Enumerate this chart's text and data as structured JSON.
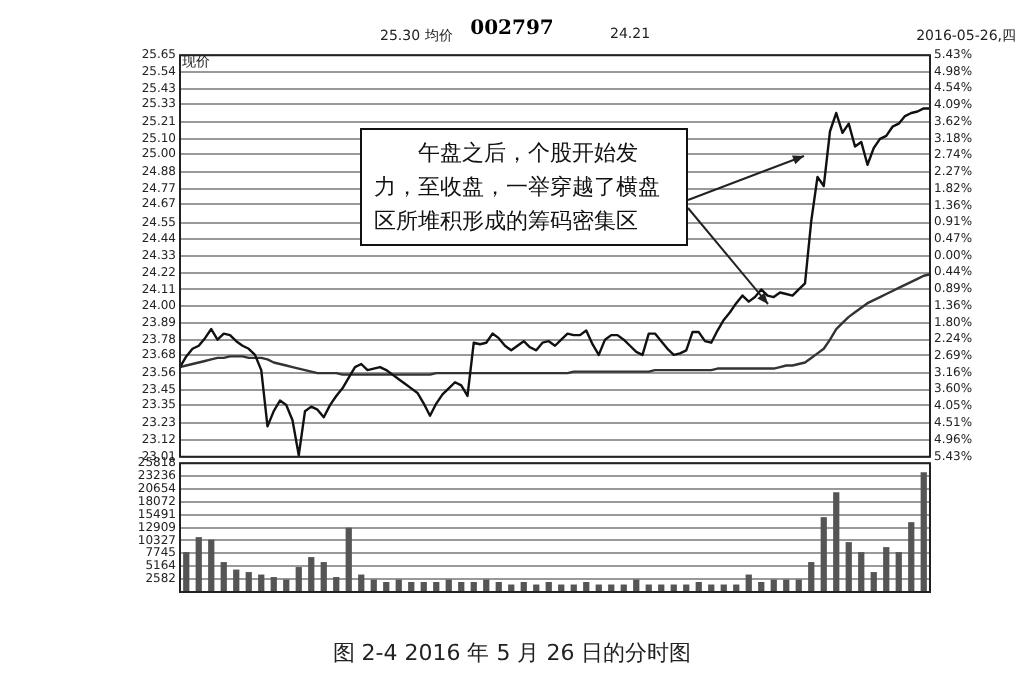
{
  "chart_data": [
    {
      "type": "line",
      "title": "002797",
      "ylabel": "现价",
      "annotations": [
        "25.30 均价",
        "24.21",
        "2016-05-26,四",
        "午盘之后，个股开始发力，至收盘，一举穿越了横盘区所堆积形成的筹码密集区"
      ],
      "categories": [
        null,
        null,
        null,
        null,
        null,
        null,
        null,
        null,
        null,
        null,
        null,
        null,
        null,
        null,
        null,
        null,
        null,
        null,
        null,
        null,
        null,
        null,
        null,
        null,
        null,
        null,
        null,
        null,
        null,
        null,
        null,
        null,
        null,
        null,
        null,
        null,
        null,
        null,
        null,
        null,
        null,
        null,
        null,
        null,
        null,
        null,
        null,
        null,
        null,
        null,
        null,
        null,
        null,
        null,
        null,
        null,
        null,
        null,
        null,
        null,
        null,
        null,
        null,
        null,
        null,
        null,
        null,
        null,
        null,
        null,
        null,
        null,
        null,
        null,
        null,
        null,
        null,
        null,
        null,
        null,
        null,
        null,
        null,
        null,
        null,
        null,
        null,
        null,
        null,
        null,
        null,
        null,
        null,
        null,
        null,
        null,
        null,
        null,
        null,
        null,
        null,
        null,
        null,
        null,
        null,
        null,
        null,
        null,
        null,
        null,
        null,
        null,
        null,
        null,
        null,
        null,
        null,
        null,
        null,
        null,
        null
      ],
      "series": [
        {
          "color": "#111111",
          "values": [
            23.6,
            23.67,
            23.72,
            23.74,
            23.79,
            23.85,
            23.78,
            23.82,
            23.81,
            23.77,
            23.74,
            23.72,
            23.68,
            23.58,
            23.21,
            23.31,
            23.38,
            23.35,
            23.25,
            23.02,
            23.31,
            23.34,
            23.32,
            23.27,
            23.35,
            23.41,
            23.46,
            23.53,
            23.6,
            23.62,
            23.58,
            23.59,
            23.6,
            23.58,
            23.55,
            23.52,
            23.49,
            23.46,
            23.43,
            23.36,
            23.28,
            23.36,
            23.42,
            23.46,
            23.5,
            23.48,
            23.41,
            23.76,
            23.75,
            23.76,
            23.82,
            23.79,
            23.74,
            23.71,
            23.74,
            23.77,
            23.73,
            23.71,
            23.76,
            23.77,
            23.74,
            23.78,
            23.82,
            23.81,
            23.81,
            23.84,
            23.75,
            23.68,
            23.78,
            23.81,
            23.81,
            23.78,
            23.74,
            23.7,
            23.68,
            23.82,
            23.82,
            23.77,
            23.72,
            23.68,
            23.69,
            23.71,
            23.83,
            23.83,
            23.77,
            23.76,
            23.84,
            23.91,
            23.96,
            24.02,
            24.07,
            24.03,
            24.06,
            24.11,
            24.07,
            24.06,
            24.09,
            24.08,
            24.07,
            24.11,
            24.15,
            24.56,
            24.85,
            24.79,
            25.15,
            25.27,
            25.14,
            25.2,
            25.05,
            25.08,
            24.93,
            25.04,
            25.1,
            25.12,
            25.18,
            25.2,
            25.25,
            25.27,
            25.28,
            25.3,
            25.3
          ]
        },
        {
          "color": "#333333",
          "values": [
            23.6,
            23.61,
            23.62,
            23.63,
            23.64,
            23.65,
            23.66,
            23.66,
            23.67,
            23.67,
            23.67,
            23.66,
            23.66,
            23.66,
            23.65,
            23.63,
            23.62,
            23.61,
            23.6,
            23.59,
            23.58,
            23.57,
            23.56,
            23.56,
            23.56,
            23.56,
            23.55,
            23.55,
            23.55,
            23.55,
            23.55,
            23.55,
            23.55,
            23.55,
            23.55,
            23.55,
            23.55,
            23.55,
            23.55,
            23.55,
            23.55,
            23.56,
            23.56,
            23.56,
            23.56,
            23.56,
            23.56,
            23.56,
            23.56,
            23.56,
            23.56,
            23.56,
            23.56,
            23.56,
            23.56,
            23.56,
            23.56,
            23.56,
            23.56,
            23.56,
            23.56,
            23.56,
            23.56,
            23.57,
            23.57,
            23.57,
            23.57,
            23.57,
            23.57,
            23.57,
            23.57,
            23.57,
            23.57,
            23.57,
            23.57,
            23.57,
            23.58,
            23.58,
            23.58,
            23.58,
            23.58,
            23.58,
            23.58,
            23.58,
            23.58,
            23.58,
            23.59,
            23.59,
            23.59,
            23.59,
            23.59,
            23.59,
            23.59,
            23.59,
            23.59,
            23.59,
            23.6,
            23.61,
            23.61,
            23.62,
            23.63,
            23.66,
            23.69,
            23.72,
            23.78,
            23.85,
            23.89,
            23.93,
            23.96,
            23.99,
            24.02,
            24.04,
            24.06,
            24.08,
            24.1,
            24.12,
            24.14,
            24.16,
            24.18,
            24.2,
            24.21
          ]
        }
      ],
      "ylim": [
        23.01,
        25.65
      ],
      "yticks": [
        23.01,
        23.12,
        23.23,
        23.35,
        23.45,
        23.56,
        23.68,
        23.78,
        23.89,
        {
          "value": 24,
          "label": "24.00"
        },
        24.11,
        24.22,
        24.33,
        24.44,
        24.55,
        24.67,
        24.77,
        24.88,
        {
          "value": 25,
          "label": "25.00"
        },
        {
          "value": 25.1,
          "label": "25.10"
        },
        25.21,
        25.33,
        25.43,
        25.54,
        25.65
      ],
      "y2lim": [
        -5.43,
        5.43
      ],
      "y2ticks": [
        {
          "value": 5.43,
          "label": "5.43%"
        },
        {
          "value": 4.98,
          "label": "4.98%"
        },
        {
          "value": 4.54,
          "label": "4.54%"
        },
        {
          "value": 4.09,
          "label": "4.09%"
        },
        {
          "value": 3.62,
          "label": "3.62%"
        },
        {
          "value": 3.18,
          "label": "3.18%"
        },
        {
          "value": 2.74,
          "label": "2.74%"
        },
        {
          "value": 2.27,
          "label": "2.27%"
        },
        {
          "value": 1.82,
          "label": "1.82%"
        },
        {
          "value": 1.36,
          "label": "1.36%"
        },
        {
          "value": 0.91,
          "label": "0.91%"
        },
        {
          "value": 0.47,
          "label": "0.47%"
        },
        {
          "value": 0,
          "label": "0.00%"
        },
        {
          "value": -0.44,
          "label": "0.44%"
        },
        {
          "value": -0.89,
          "label": "0.89%"
        },
        {
          "value": -1.36,
          "label": "1.36%"
        },
        {
          "value": -1.8,
          "label": "1.80%"
        },
        {
          "value": -2.24,
          "label": "2.24%"
        },
        {
          "value": -2.69,
          "label": "2.69%"
        },
        {
          "value": -3.16,
          "label": "3.16%"
        },
        {
          "value": -3.6,
          "label": "3.60%"
        },
        {
          "value": -4.05,
          "label": "4.05%"
        },
        {
          "value": -4.51,
          "label": "4.51%"
        },
        {
          "value": -4.96,
          "label": "4.96%"
        },
        {
          "value": -5.43,
          "label": "5.43%"
        }
      ],
      "grid": "y",
      "legend": false,
      "tick_labels": "y",
      "marker": "none"
    },
    {
      "type": "bar",
      "annotations": [
        "图 2-4 2016 年 5 月 26 日的分时图"
      ],
      "categories": [
        null,
        null,
        null,
        null,
        null,
        null,
        null,
        null,
        null,
        null,
        null,
        null,
        null,
        null,
        null,
        null,
        null,
        null,
        null,
        null,
        null,
        null,
        null,
        null,
        null,
        null,
        null,
        null,
        null,
        null,
        null,
        null,
        null,
        null,
        null,
        null,
        null,
        null,
        null,
        null,
        null,
        null,
        null,
        null,
        null,
        null,
        null,
        null,
        null,
        null,
        null,
        null,
        null,
        null,
        null,
        null,
        null,
        null,
        null,
        null
      ],
      "values": [
        8000,
        11000,
        10500,
        6000,
        4500,
        4000,
        3500,
        3000,
        2500,
        5000,
        7000,
        6000,
        3000,
        12900,
        3500,
        2500,
        2000,
        2500,
        2000,
        2000,
        2000,
        2500,
        2000,
        2000,
        2500,
        2000,
        1500,
        2000,
        1500,
        2000,
        1500,
        1500,
        2000,
        1500,
        1500,
        1500,
        2500,
        1500,
        1500,
        1500,
        1500,
        2000,
        1500,
        1500,
        1500,
        3500,
        2000,
        2500,
        2500,
        2500,
        6000,
        15000,
        20000,
        10000,
        8000,
        4000,
        9000,
        8000,
        14000,
        24000
      ],
      "color": "#555555",
      "ylim": [
        0,
        25818
      ],
      "yticks": [
        2582,
        5164,
        7745,
        10327,
        12909,
        15491,
        18072,
        20654,
        23236,
        25818
      ],
      "grid": "y",
      "legend": false,
      "tick_labels": "y"
    }
  ]
}
